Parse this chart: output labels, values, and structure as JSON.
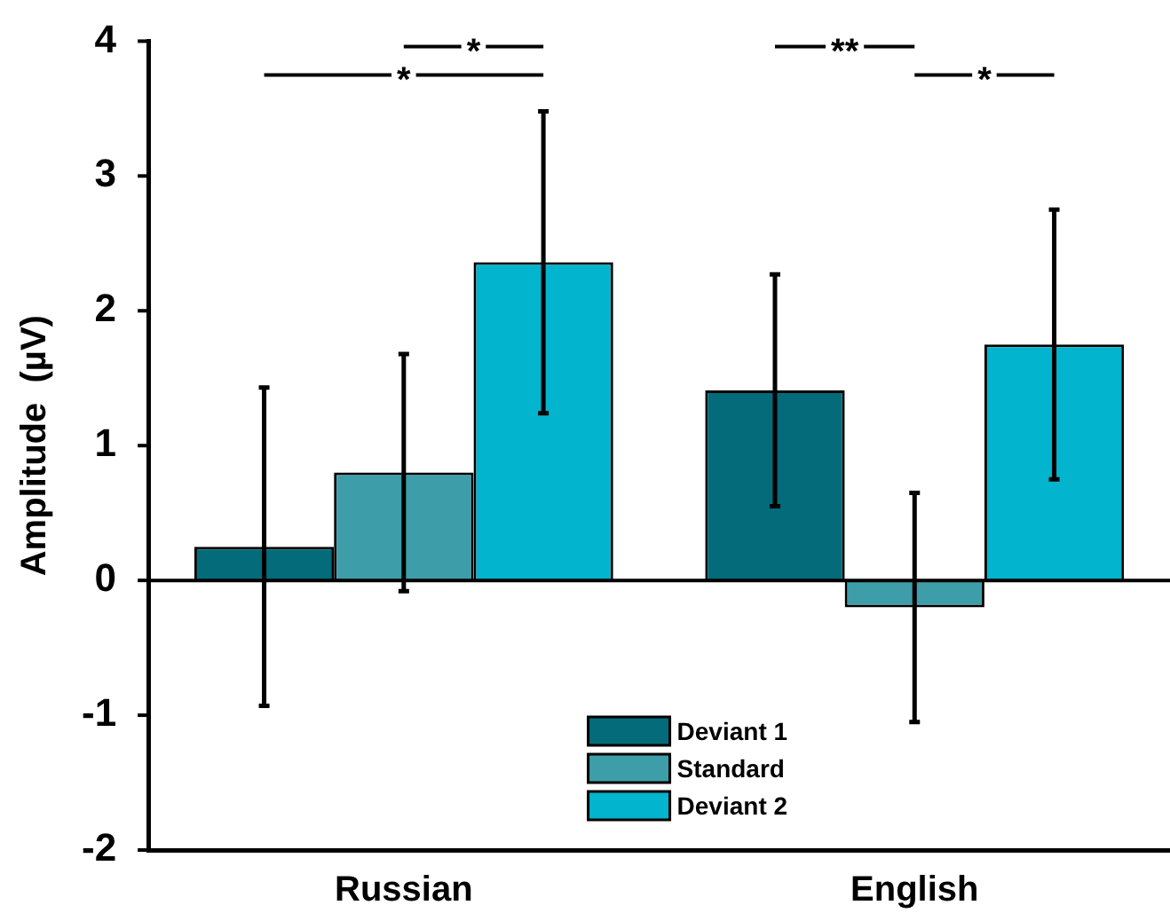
{
  "chart_data": {
    "type": "bar",
    "ylabel": "Amplitude  (µV)",
    "categories": [
      "Russian",
      "English"
    ],
    "series": [
      {
        "name": "Deviant 1",
        "color": "#036b7a",
        "values": [
          0.25,
          1.41
        ],
        "errors": [
          1.18,
          0.86
        ]
      },
      {
        "name": "Standard",
        "color": "#3d9ea9",
        "values": [
          0.8,
          -0.2
        ],
        "errors": [
          0.88,
          0.85
        ]
      },
      {
        "name": "Deviant 2",
        "color": "#02b4cd",
        "values": [
          2.36,
          1.75
        ],
        "errors": [
          1.12,
          1.0
        ]
      }
    ],
    "ref_lines": [
      {
        "axis": "y",
        "value": 0
      }
    ],
    "ylim": [
      -2,
      4
    ],
    "yticks": [
      -2,
      -1,
      0,
      1,
      2,
      3,
      4
    ],
    "grid": false,
    "legend": "bottom",
    "annotations": [
      "*",
      "*",
      "**",
      "*"
    ]
  }
}
